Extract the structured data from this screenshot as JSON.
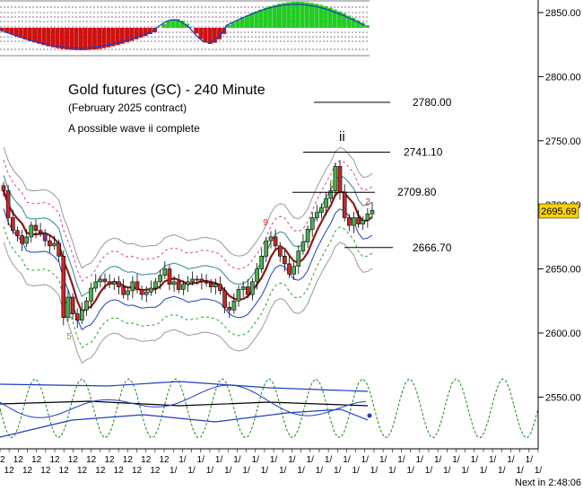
{
  "chart_data": {
    "type": "candlestick",
    "title": "Gold futures (GC) - 240 Minute",
    "subtitle": "(February 2025 contract)",
    "annotation": "A possible wave ii complete",
    "wave_label": "ii",
    "y_axis": {
      "ticks": [
        2850.0,
        2800.0,
        2750.0,
        2700.0,
        2650.0,
        2600.0,
        2550.0
      ],
      "tick_labels": [
        "2850.00",
        "2800.00",
        "2750.00",
        "2700.00",
        "2650.00",
        "2600.00",
        "2550.00"
      ],
      "ylim": [
        2525,
        2868
      ],
      "grid": false
    },
    "current_price": 2695.69,
    "current_price_label": "2695.69",
    "levels": [
      {
        "value": 2780.0,
        "label": "2780.00"
      },
      {
        "value": 2741.1,
        "label": "2741.10"
      },
      {
        "value": 2709.8,
        "label": "2709.80"
      },
      {
        "value": 2666.7,
        "label": "2666.70"
      }
    ],
    "count_labels": [
      {
        "text": "9",
        "color": "#1f3fbf",
        "price": 2672
      },
      {
        "text": "5",
        "color": "#a08a2a",
        "price": 2595
      },
      {
        "text": "9",
        "color": "#d02020",
        "price": 2684
      },
      {
        "text": "5",
        "color": "#a08a2a",
        "price": 2714
      },
      {
        "text": "2",
        "color": "#d02020",
        "price": 2700
      }
    ],
    "closes": [
      2711,
      2690,
      2680,
      2676,
      2670,
      2675,
      2684,
      2680,
      2678,
      2672,
      2668,
      2670,
      2660,
      2612,
      2628,
      2615,
      2610,
      2618,
      2625,
      2635,
      2640,
      2642,
      2640,
      2638,
      2640,
      2636,
      2630,
      2633,
      2640,
      2634,
      2630,
      2632,
      2635,
      2640,
      2645,
      2650,
      2638,
      2640,
      2634,
      2638,
      2640,
      2642,
      2642,
      2640,
      2639,
      2636,
      2638,
      2633,
      2620,
      2618,
      2625,
      2634,
      2636,
      2630,
      2640,
      2650,
      2660,
      2672,
      2675,
      2668,
      2660,
      2654,
      2646,
      2652,
      2664,
      2671,
      2681,
      2690,
      2694,
      2698,
      2705,
      2711,
      2730,
      2710,
      2690,
      2684,
      2690,
      2685,
      2688,
      2693,
      2695.69
    ],
    "x_tick_labels": [
      "12",
      "12",
      "12",
      "12",
      "12",
      "12",
      "12",
      "12",
      "12",
      "12",
      "12",
      "12",
      "12",
      "12",
      "12",
      "12",
      "12",
      "12",
      "12",
      "1/",
      "1/",
      "1/",
      "1/",
      "1/",
      "1/",
      "1/",
      "1/",
      "1/",
      "1/",
      "1/",
      "1/",
      "1/",
      "1/",
      "1/",
      "1/",
      "1/",
      "1/",
      "1/",
      "1/",
      "1/",
      "1/",
      "1/",
      "1/",
      "1/",
      "1/",
      "1/",
      "1/",
      "1/",
      "1/",
      "1/",
      "1/",
      "1/",
      "1/",
      "1/",
      "1/",
      "1/",
      "1/",
      "1/",
      "1/",
      "1/"
    ],
    "clock": "Next in 2:48:06"
  },
  "colors": {
    "background": "#ffffff",
    "candle_up": "#4caf50",
    "candle_down": "#c62828",
    "moving_average": "#8b1a1a",
    "band_blue": "#1f3fbf",
    "band_gray": "#999999",
    "band_teal": "#2a8a8a",
    "band_magenta": "#d6409f",
    "band_green": "#1fa81f",
    "cycle_green": "#1a8a1a",
    "histogram_green": "#22cc22",
    "histogram_red": "#cc1111",
    "level_line": "#000000",
    "price_box": "#ffd400"
  }
}
